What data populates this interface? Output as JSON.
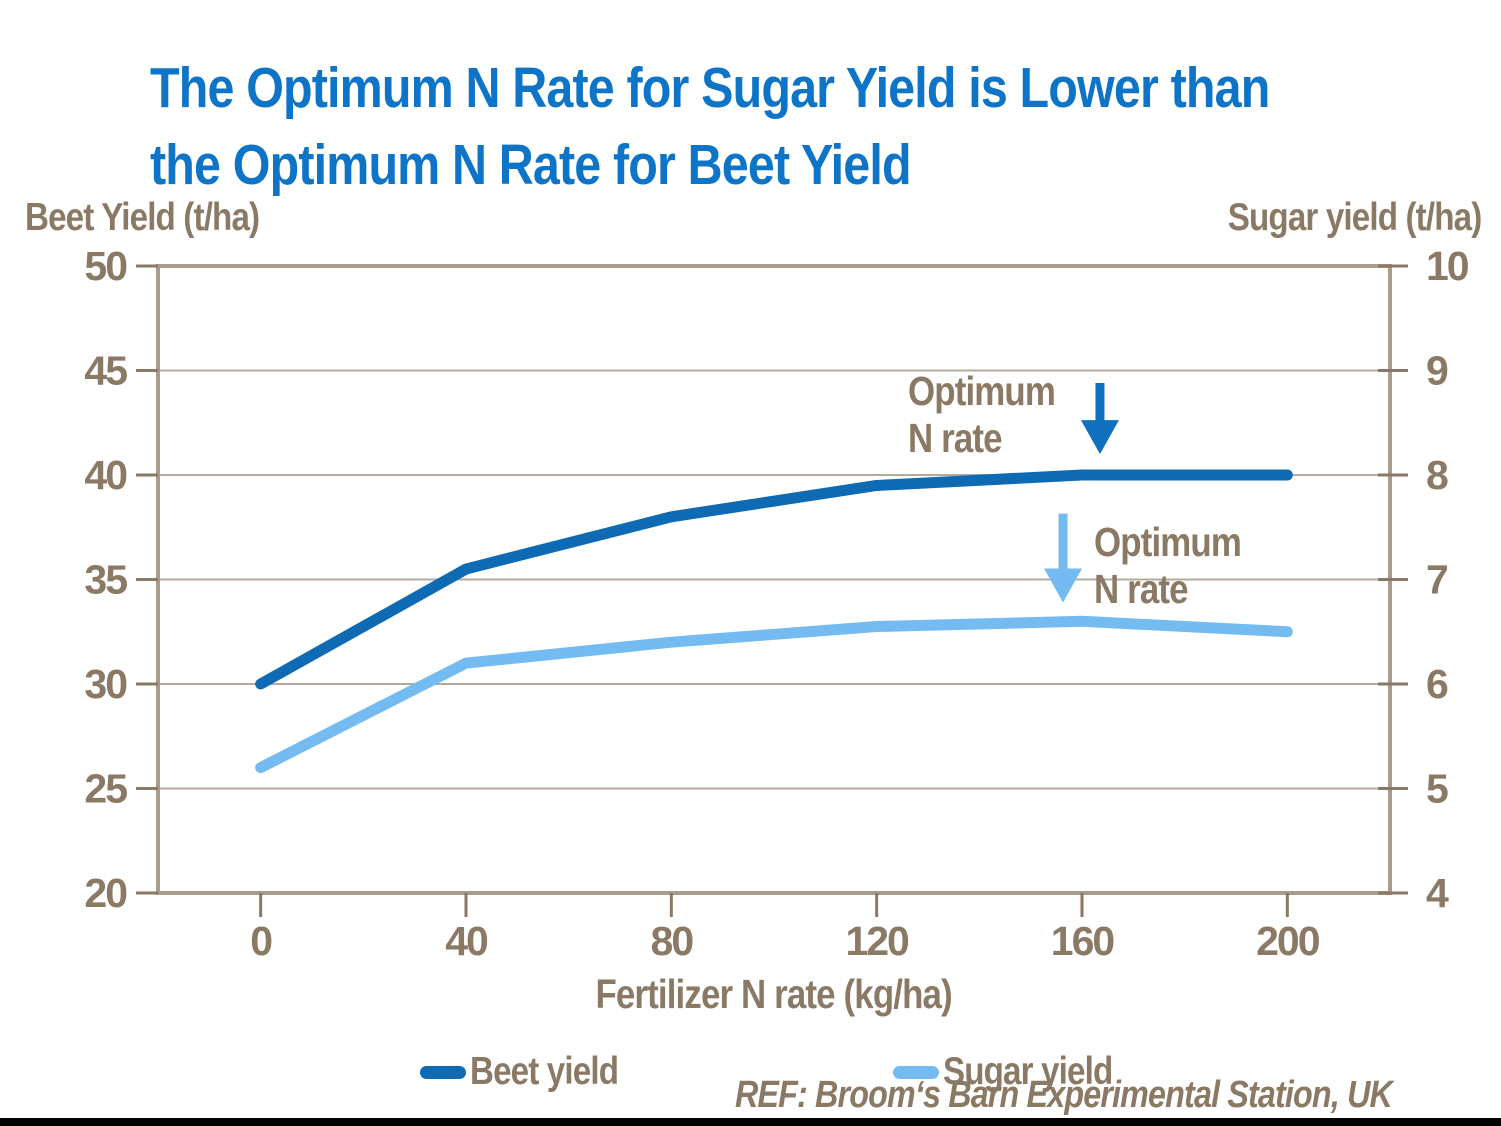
{
  "title": {
    "line1": "The Optimum N Rate for Sugar Yield is Lower than",
    "line2": "the Optimum N Rate for Beet Yield"
  },
  "axes": {
    "left_label": "Beet Yield (t/ha)",
    "right_label": "Sugar yield (t/ha)",
    "x_label": "Fertilizer N rate (kg/ha)"
  },
  "annotations": {
    "beet_optimum": {
      "line1": "Optimum",
      "line2": "N rate"
    },
    "sugar_optimum": {
      "line1": "Optimum",
      "line2": "N rate"
    }
  },
  "footer": {
    "ref": "REF: Broom‘s Barn Experimental Station, UK"
  },
  "colors": {
    "title_blue": "#0d74c7",
    "beet_line": "#0f6ab4",
    "sugar_line": "#74bbf2",
    "text_brown": "#8a7a65",
    "frame": "#a89c8c",
    "gridline": "#b5ab9c",
    "bottom_bar": "#000000"
  },
  "chart_data": {
    "type": "line",
    "title": "The Optimum N Rate for Sugar Yield is Lower than the Optimum N Rate for Beet Yield",
    "xlabel": "Fertilizer N rate (kg/ha)",
    "x": [
      0,
      40,
      80,
      120,
      160,
      200
    ],
    "x_ticks": [
      0,
      40,
      80,
      120,
      160,
      200
    ],
    "xlim": [
      -20,
      220
    ],
    "grid": "horizontal",
    "legend_position": "bottom",
    "left_axis": {
      "label": "Beet Yield (t/ha)",
      "min": 20,
      "max": 50,
      "ticks": [
        50,
        45,
        40,
        35,
        30,
        25,
        20
      ]
    },
    "right_axis": {
      "label": "Sugar yield (t/ha)",
      "min": 4,
      "max": 10,
      "ticks": [
        10,
        9,
        8,
        7,
        6,
        5,
        4
      ]
    },
    "series": [
      {
        "name": "Beet yield",
        "slug": "beet-yield",
        "axis": "left",
        "color": "#0f6ab4",
        "values": [
          30,
          35.5,
          38,
          39.5,
          40,
          40
        ]
      },
      {
        "name": "Sugar yield",
        "slug": "sugar-yield",
        "axis": "right",
        "color": "#74bbf2",
        "values": [
          5.2,
          6.2,
          6.4,
          6.55,
          6.6,
          6.5
        ]
      }
    ],
    "arrows": [
      {
        "name": "optimum-arrow-beet",
        "axis": "left",
        "color": "#1171be",
        "x": 163.5,
        "from_value": 44.4,
        "to_value": 41.0
      },
      {
        "name": "optimum-arrow-sugar",
        "axis": "right",
        "color": "#74bbf2",
        "x": 156.3,
        "from_value": 7.63,
        "to_value": 6.78
      }
    ]
  }
}
